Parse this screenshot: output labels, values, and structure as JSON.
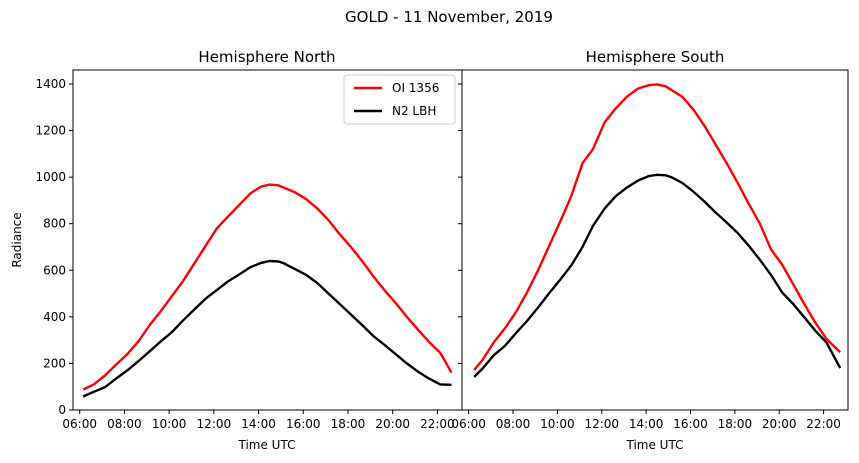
{
  "figure": {
    "suptitle": "GOLD - 11 November, 2019"
  },
  "chart_data": [
    {
      "type": "line",
      "title": "Hemisphere North",
      "xlabel": "Time UTC",
      "ylabel": "Radiance",
      "xlim": [
        5.7,
        23.1
      ],
      "ylim": [
        0,
        1460
      ],
      "xticks": [
        6,
        8,
        10,
        12,
        14,
        16,
        18,
        20,
        22
      ],
      "xtick_labels": [
        "06:00",
        "08:00",
        "10:00",
        "12:00",
        "14:00",
        "16:00",
        "18:00",
        "20:00",
        "22:00"
      ],
      "yticks": [
        0,
        200,
        400,
        600,
        800,
        1000,
        1200,
        1400
      ],
      "ytick_labels": [
        "0",
        "200",
        "400",
        "600",
        "800",
        "1000",
        "1200",
        "1400"
      ],
      "legend": {
        "position": "top-right"
      },
      "series": [
        {
          "name": "OI 1356",
          "color": "#ff0000",
          "x": [
            6.15,
            6.63,
            7.13,
            7.63,
            8.13,
            8.63,
            9.13,
            9.63,
            10.13,
            10.63,
            11.13,
            11.63,
            12.13,
            12.63,
            13.13,
            13.63,
            14.13,
            14.5,
            14.88,
            15.13,
            15.63,
            16.13,
            16.63,
            17.13,
            17.63,
            18.13,
            18.63,
            19.13,
            19.63,
            20.13,
            20.63,
            21.13,
            21.63,
            22.13,
            22.63
          ],
          "y": [
            88,
            110,
            148,
            195,
            240,
            295,
            365,
            425,
            490,
            555,
            630,
            705,
            780,
            830,
            880,
            930,
            960,
            968,
            965,
            955,
            935,
            905,
            865,
            815,
            755,
            700,
            640,
            575,
            515,
            460,
            400,
            345,
            292,
            245,
            160
          ]
        },
        {
          "name": "N2 LBH",
          "color": "#000000",
          "x": [
            6.15,
            6.63,
            7.13,
            7.63,
            8.13,
            8.63,
            9.13,
            9.63,
            10.13,
            10.63,
            11.13,
            11.63,
            12.13,
            12.63,
            13.13,
            13.63,
            14.13,
            14.5,
            14.88,
            15.13,
            15.63,
            16.13,
            16.63,
            17.13,
            17.63,
            18.13,
            18.63,
            19.13,
            19.63,
            20.13,
            20.63,
            21.13,
            21.63,
            22.13,
            22.63
          ],
          "y": [
            58,
            78,
            98,
            135,
            170,
            210,
            252,
            295,
            335,
            385,
            432,
            478,
            515,
            552,
            582,
            613,
            632,
            640,
            638,
            630,
            605,
            580,
            545,
            500,
            455,
            410,
            365,
            318,
            280,
            240,
            200,
            165,
            135,
            110,
            108
          ]
        }
      ]
    },
    {
      "type": "line",
      "title": "Hemisphere South",
      "xlabel": "Time UTC",
      "ylabel": "",
      "xlim": [
        5.7,
        23.1
      ],
      "ylim": [
        0,
        1460
      ],
      "xticks": [
        6,
        8,
        10,
        12,
        14,
        16,
        18,
        20,
        22
      ],
      "xtick_labels": [
        "06:00",
        "08:00",
        "10:00",
        "12:00",
        "14:00",
        "16:00",
        "18:00",
        "20:00",
        "22:00"
      ],
      "series": [
        {
          "name": "OI 1356",
          "color": "#ff0000",
          "x": [
            6.25,
            6.63,
            7.13,
            7.63,
            8.13,
            8.63,
            9.13,
            9.63,
            10.13,
            10.63,
            11.13,
            11.6,
            12.13,
            12.63,
            13.13,
            13.63,
            14.13,
            14.5,
            14.88,
            15.13,
            15.63,
            16.13,
            16.63,
            17.13,
            17.63,
            18.13,
            18.63,
            19.13,
            19.63,
            20.13,
            20.63,
            21.13,
            21.63,
            22.13,
            22.75
          ],
          "y": [
            172,
            215,
            290,
            350,
            420,
            505,
            600,
            705,
            810,
            920,
            1060,
            1120,
            1235,
            1295,
            1345,
            1380,
            1395,
            1398,
            1390,
            1375,
            1345,
            1290,
            1220,
            1140,
            1060,
            975,
            885,
            800,
            690,
            625,
            540,
            455,
            375,
            305,
            248
          ]
        },
        {
          "name": "N2 LBH",
          "color": "#000000",
          "x": [
            6.25,
            6.63,
            7.13,
            7.63,
            8.13,
            8.63,
            9.13,
            9.63,
            10.13,
            10.63,
            11.13,
            11.6,
            12.13,
            12.63,
            13.13,
            13.63,
            14.13,
            14.5,
            14.88,
            15.13,
            15.63,
            16.13,
            16.63,
            17.13,
            17.63,
            18.13,
            18.63,
            19.13,
            19.63,
            20.13,
            20.63,
            21.13,
            21.63,
            22.13,
            22.75
          ],
          "y": [
            142,
            178,
            235,
            275,
            330,
            382,
            440,
            502,
            560,
            622,
            700,
            790,
            865,
            918,
            955,
            985,
            1005,
            1010,
            1008,
            1000,
            975,
            938,
            895,
            848,
            805,
            760,
            705,
            645,
            580,
            505,
            455,
            398,
            340,
            290,
            180
          ]
        }
      ]
    }
  ]
}
